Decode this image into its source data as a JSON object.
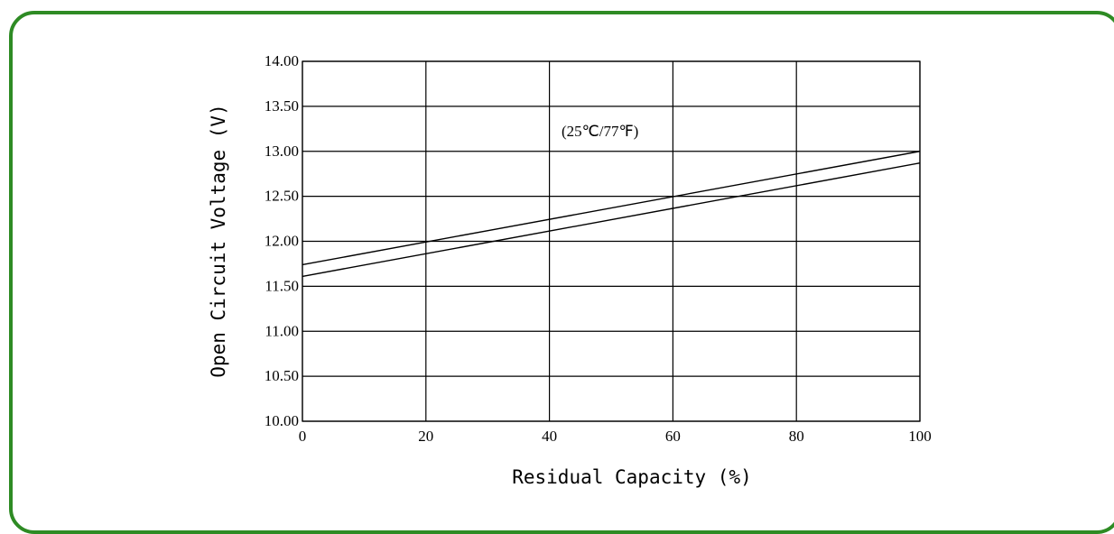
{
  "colors": {
    "frame_border": "#2e8b24",
    "lines": "#000000",
    "background": "#ffffff"
  },
  "chart_data": {
    "type": "line",
    "title": "",
    "xlabel": "Residual Capacity (%)",
    "ylabel": "Open Circuit Voltage (V)",
    "annotation": "(25℃/77℉)",
    "xlim": [
      0,
      100
    ],
    "ylim": [
      10.0,
      14.0
    ],
    "x_ticks": [
      "0",
      "20",
      "40",
      "60",
      "80",
      "100"
    ],
    "y_ticks": [
      "10.00",
      "10.50",
      "11.00",
      "11.50",
      "12.00",
      "12.50",
      "13.00",
      "13.50",
      "14.00"
    ],
    "grid": true,
    "x": [
      0,
      100
    ],
    "series": [
      {
        "values": [
          11.74,
          13.0
        ]
      },
      {
        "values": [
          11.61,
          12.87
        ]
      }
    ]
  }
}
